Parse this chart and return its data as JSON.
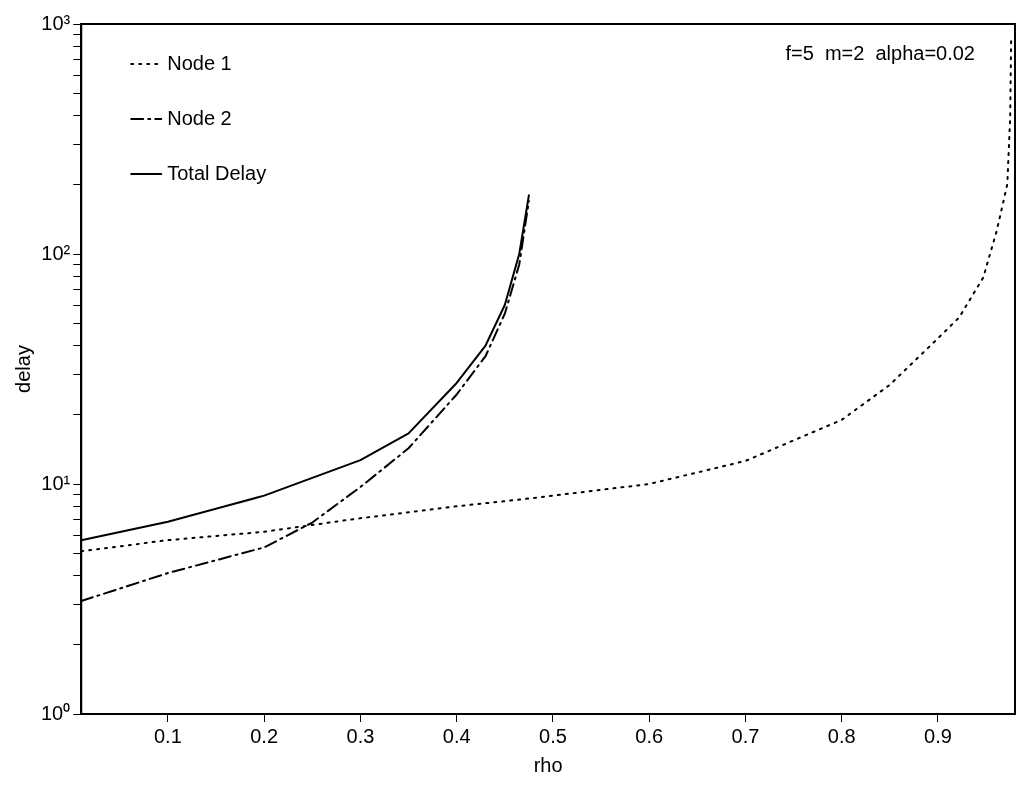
{
  "chart_data": {
    "type": "line",
    "xlabel": "rho",
    "ylabel": "delay",
    "log": "y",
    "grid": false,
    "legend": "top left",
    "marker": "none",
    "annotations": [
      "f=5  m=2  alpha=0.02"
    ],
    "xlim": [
      0.01,
      0.98
    ],
    "xticks": [
      0.1,
      0.2,
      0.3,
      0.4,
      0.5,
      0.6,
      0.7,
      0.8,
      0.9
    ],
    "ylim": [
      1,
      1000
    ],
    "yticks": [
      {
        "value": 1,
        "label": "10⁰"
      },
      {
        "value": 2,
        "label": null
      },
      {
        "value": 3,
        "label": null
      },
      {
        "value": 4,
        "label": null
      },
      {
        "value": 5,
        "label": null
      },
      {
        "value": 6,
        "label": null
      },
      {
        "value": 7,
        "label": null
      },
      {
        "value": 8,
        "label": null
      },
      {
        "value": 9,
        "label": null
      },
      {
        "value": 10,
        "label": "10¹"
      },
      {
        "value": 20,
        "label": null
      },
      {
        "value": 30,
        "label": null
      },
      {
        "value": 40,
        "label": null
      },
      {
        "value": 50,
        "label": null
      },
      {
        "value": 60,
        "label": null
      },
      {
        "value": 70,
        "label": null
      },
      {
        "value": 80,
        "label": null
      },
      {
        "value": 90,
        "label": null
      },
      {
        "value": 100,
        "label": "10²"
      },
      {
        "value": 200,
        "label": null
      },
      {
        "value": 300,
        "label": null
      },
      {
        "value": 400,
        "label": null
      },
      {
        "value": 500,
        "label": null
      },
      {
        "value": 600,
        "label": null
      },
      {
        "value": 700,
        "label": null
      },
      {
        "value": 800,
        "label": null
      },
      {
        "value": 900,
        "label": null
      },
      {
        "value": 1000,
        "label": "10³"
      }
    ],
    "series": [
      {
        "name": "Node 1",
        "color": "#000000",
        "line_style": "dotted",
        "x": [
          0.01,
          0.1,
          0.2,
          0.3,
          0.4,
          0.47,
          0.5,
          0.6,
          0.7,
          0.8,
          0.85,
          0.9,
          0.922,
          0.947,
          0.961,
          0.972,
          0.975,
          0.976
        ],
        "values": [
          5.1,
          5.7,
          6.2,
          7.1,
          8.0,
          8.6,
          8.9,
          10,
          12.6,
          19,
          27,
          43,
          53,
          79,
          126,
          201,
          393,
          870
        ]
      },
      {
        "name": "Node 2",
        "color": "#000000",
        "line_style": "dashdot",
        "x": [
          0.01,
          0.1,
          0.2,
          0.25,
          0.3,
          0.35,
          0.4,
          0.43,
          0.45,
          0.465,
          0.475
        ],
        "values": [
          3.1,
          4.1,
          5.3,
          6.8,
          9.7,
          14.3,
          24.5,
          36,
          55,
          90,
          170
        ]
      },
      {
        "name": "Total Delay",
        "color": "#000000",
        "line_style": "solid",
        "x": [
          0.01,
          0.1,
          0.2,
          0.3,
          0.35,
          0.4,
          0.43,
          0.45,
          0.465,
          0.475
        ],
        "values": [
          5.7,
          6.85,
          8.9,
          12.7,
          16.6,
          27.5,
          40,
          60,
          100,
          180
        ]
      }
    ]
  }
}
